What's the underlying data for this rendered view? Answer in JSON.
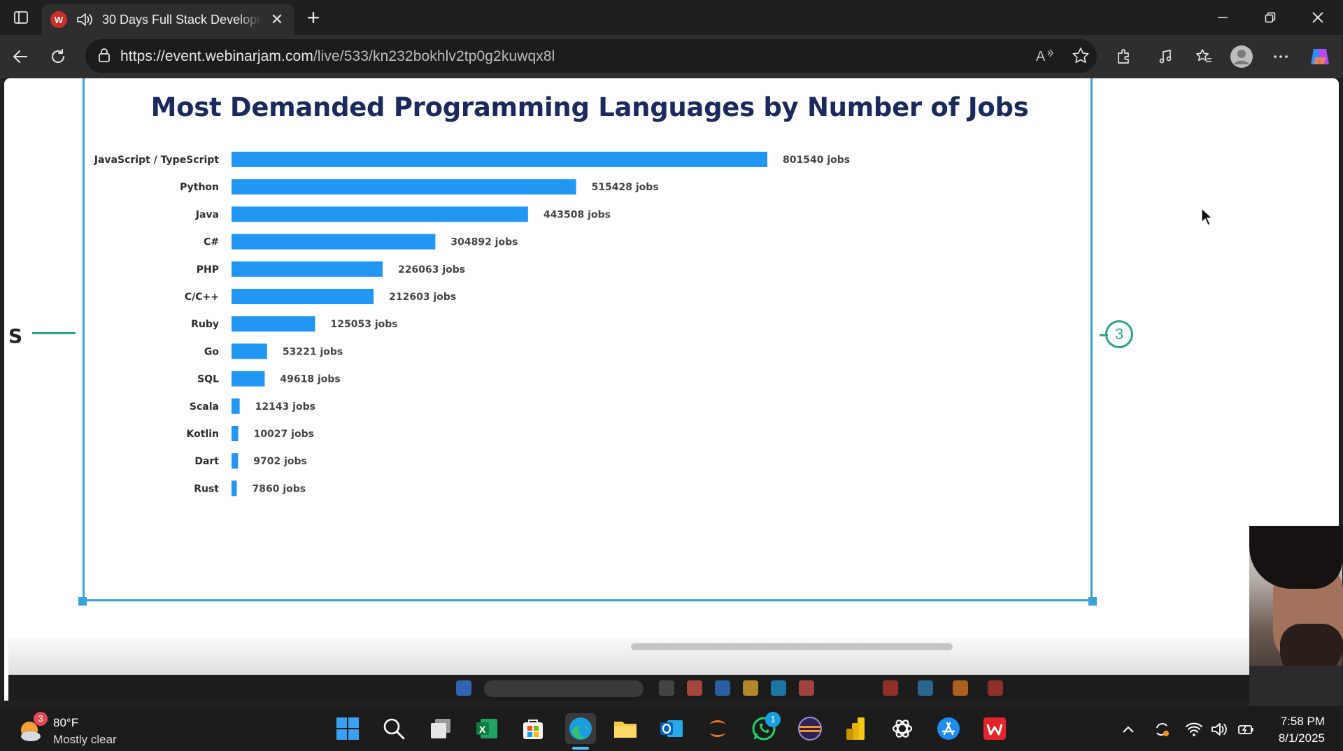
{
  "browser": {
    "tab": {
      "favicon_text": "W",
      "title": "30 Days Full Stack Developm",
      "close": "✕"
    },
    "new_tab": "+",
    "url": {
      "host": "https://event.webinarjam.com",
      "path": "/live/533/kn232bokhlv2tp0g2kuwqx8l"
    },
    "read_aloud": "A⁾"
  },
  "slide": {
    "side_label": "S",
    "page_number": "3"
  },
  "chart_data": {
    "type": "bar",
    "orientation": "horizontal",
    "title": "Most Demanded Programming Languages by Number of Jobs",
    "categories": [
      "JavaScript / TypeScript",
      "Python",
      "Java",
      "C#",
      "PHP",
      "C/C++",
      "Ruby",
      "Go",
      "SQL",
      "Scala",
      "Kotlin",
      "Dart",
      "Rust"
    ],
    "values": [
      801540,
      515428,
      443508,
      304892,
      226063,
      212603,
      125053,
      53221,
      49618,
      12143,
      10027,
      9702,
      7860
    ],
    "value_labels": [
      "801540 jobs",
      "515428 jobs",
      "443508 jobs",
      "304892 jobs",
      "226063 jobs",
      "212603 jobs",
      "125053 jobs",
      "53221 jobs",
      "49618 jobs",
      "12143 jobs",
      "10027 jobs",
      "9702 jobs",
      "7860 jobs"
    ],
    "bar_color": "#2196f3",
    "grid": false,
    "legend": "none"
  },
  "taskbar": {
    "weather": {
      "badge": "3",
      "temp": "80°F",
      "desc": "Mostly clear"
    },
    "whatsapp_badge": "1",
    "clock": {
      "time": "7:58 PM",
      "date": "8/1/2025"
    },
    "icons": [
      "start-icon",
      "search-icon",
      "task-view-icon",
      "excel-icon",
      "store-icon",
      "edge-icon",
      "file-explorer-icon",
      "outlook-icon",
      "jupyter-icon",
      "whatsapp-icon",
      "eclipse-icon",
      "power-bi-icon",
      "chatgpt-icon",
      "app-store-icon",
      "wps-icon"
    ]
  },
  "colors": {
    "accent": "#3aa2da",
    "title": "#1b2a5c",
    "bar": "#2196f3",
    "badge": "#2aa687"
  }
}
